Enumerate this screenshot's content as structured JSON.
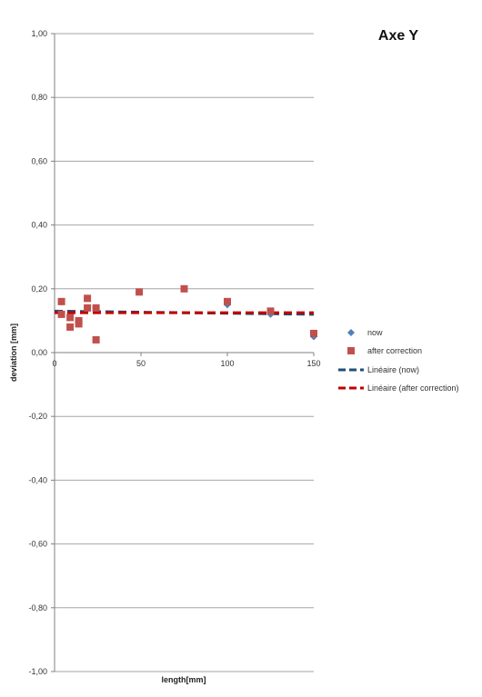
{
  "chart_data": {
    "type": "scatter",
    "title": "Axe Y",
    "xlabel": "length[mm]",
    "ylabel": "deviation [mm]",
    "xlim": [
      0,
      150
    ],
    "ylim": [
      -1.0,
      1.0
    ],
    "x_ticks": [
      "0",
      "50",
      "100",
      "150"
    ],
    "y_ticks": [
      "1,00",
      "0,80",
      "0,60",
      "0,40",
      "0,20",
      "0,00",
      "-0,20",
      "-0,40",
      "-0,60",
      "-0,80",
      "-1,00"
    ],
    "grid": "horizontal",
    "legend_position": "right",
    "series": [
      {
        "name": "now",
        "marker": "diamond",
        "color": "#4f81bd",
        "x": [
          4,
          4,
          9,
          9,
          14,
          14,
          19,
          19,
          24,
          24,
          49,
          75,
          100,
          125,
          150
        ],
        "y": [
          0.16,
          0.12,
          0.11,
          0.08,
          0.1,
          0.09,
          0.17,
          0.14,
          0.14,
          0.04,
          0.19,
          0.2,
          0.15,
          0.12,
          0.05
        ]
      },
      {
        "name": "after correction",
        "marker": "square",
        "color": "#c0504d",
        "x": [
          4,
          4,
          9,
          9,
          14,
          14,
          19,
          19,
          24,
          24,
          49,
          75,
          100,
          125,
          150
        ],
        "y": [
          0.16,
          0.12,
          0.11,
          0.08,
          0.1,
          0.09,
          0.17,
          0.14,
          0.14,
          0.04,
          0.19,
          0.2,
          0.16,
          0.13,
          0.06
        ]
      }
    ],
    "trendlines": [
      {
        "name": "Linéaire (now)",
        "color": "#1f4e79",
        "x": [
          0,
          150
        ],
        "y": [
          0.13,
          0.12
        ]
      },
      {
        "name": "Linéaire (after correction)",
        "color": "#c00000",
        "x": [
          0,
          150
        ],
        "y": [
          0.125,
          0.125
        ]
      }
    ]
  }
}
